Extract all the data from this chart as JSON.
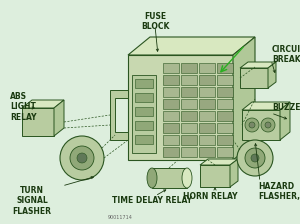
{
  "bg_color": "#ddeedd",
  "line_color": "#2a5520",
  "text_color": "#1a3a10",
  "grid_color": "#3a6a30",
  "labels": {
    "fuse_block": "FUSE\nBLOCK",
    "circuit_breaker": "CIRCUIT\nBREAKER",
    "abs_light_relay": "ABS\nLIGHT\nRELAY",
    "buzzer": "BUZZER",
    "turn_signal_flasher": "TURN\nSIGNAL\nFLASHER",
    "time_delay_relay": "TIME DELAY RELAY",
    "horn_relay": "HORN RELAY",
    "hazard_flasher": "HAZARD\nFLASHER,"
  },
  "watermark": "90011714"
}
